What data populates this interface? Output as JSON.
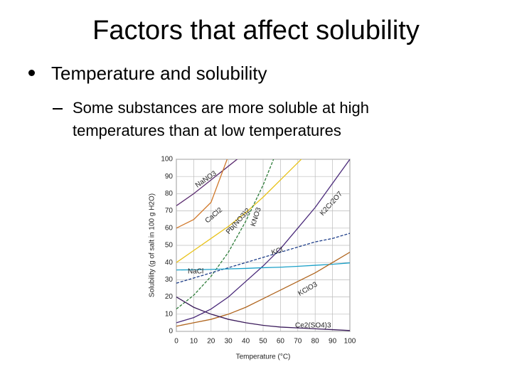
{
  "slide": {
    "title": "Factors that affect solubility",
    "bullet": "Temperature and solubility",
    "sub_bullet": "Some substances are more soluble at high temperatures than at low temperatures"
  },
  "chart_data": {
    "type": "line",
    "x_label": "Temperature (°C)",
    "y_label": "Solubility (g of salt in 100 g H2O)",
    "x": [
      0,
      10,
      20,
      30,
      40,
      50,
      60,
      70,
      80,
      90,
      100
    ],
    "xlim": [
      0,
      100
    ],
    "ylim": [
      0,
      100
    ],
    "xticks": [
      0,
      10,
      20,
      30,
      40,
      50,
      60,
      70,
      80,
      90,
      100
    ],
    "yticks": [
      0,
      10,
      20,
      30,
      40,
      50,
      60,
      70,
      80,
      90,
      100
    ],
    "grid": true,
    "series": [
      {
        "name": "NaNO3",
        "color": "#5a2a6e",
        "values": [
          73,
          80,
          88,
          96,
          104,
          null,
          null,
          null,
          null,
          null,
          null
        ]
      },
      {
        "name": "CaCl2",
        "color": "#d0782a",
        "values": [
          60,
          65,
          75,
          102,
          null,
          null,
          null,
          null,
          null,
          null,
          null
        ]
      },
      {
        "name": "Pb(NO3)2",
        "color": "#e8c21a",
        "values": [
          40,
          47,
          54,
          61,
          69,
          78,
          88,
          98,
          108,
          null,
          null
        ]
      },
      {
        "name": "KNO3",
        "color": "#2e7d3a",
        "dash": true,
        "values": [
          13,
          21,
          32,
          46,
          64,
          85,
          110,
          null,
          null,
          null,
          null
        ]
      },
      {
        "name": "K2Cr2O7",
        "color": "#4a2a7a",
        "values": [
          5,
          8,
          13,
          20,
          29,
          38,
          48,
          60,
          72,
          86,
          100
        ]
      },
      {
        "name": "KCl",
        "color": "#1f3f8a",
        "dash": true,
        "values": [
          28,
          31,
          34,
          37,
          40,
          43,
          46,
          49,
          52,
          54,
          57
        ]
      },
      {
        "name": "NaCl",
        "color": "#1aa0c8",
        "values": [
          35.7,
          35.8,
          36,
          36.3,
          36.6,
          37,
          37.3,
          37.8,
          38.4,
          39,
          39.8
        ]
      },
      {
        "name": "KClO3",
        "color": "#b0651e",
        "values": [
          3,
          5,
          7,
          10,
          14,
          19,
          24,
          29,
          34,
          40,
          46
        ]
      },
      {
        "name": "Ce2(SO4)3",
        "color": "#3a1a5a",
        "values": [
          20,
          14,
          10,
          7,
          5,
          3.5,
          2.5,
          2,
          1.5,
          1,
          0.5
        ]
      }
    ]
  }
}
